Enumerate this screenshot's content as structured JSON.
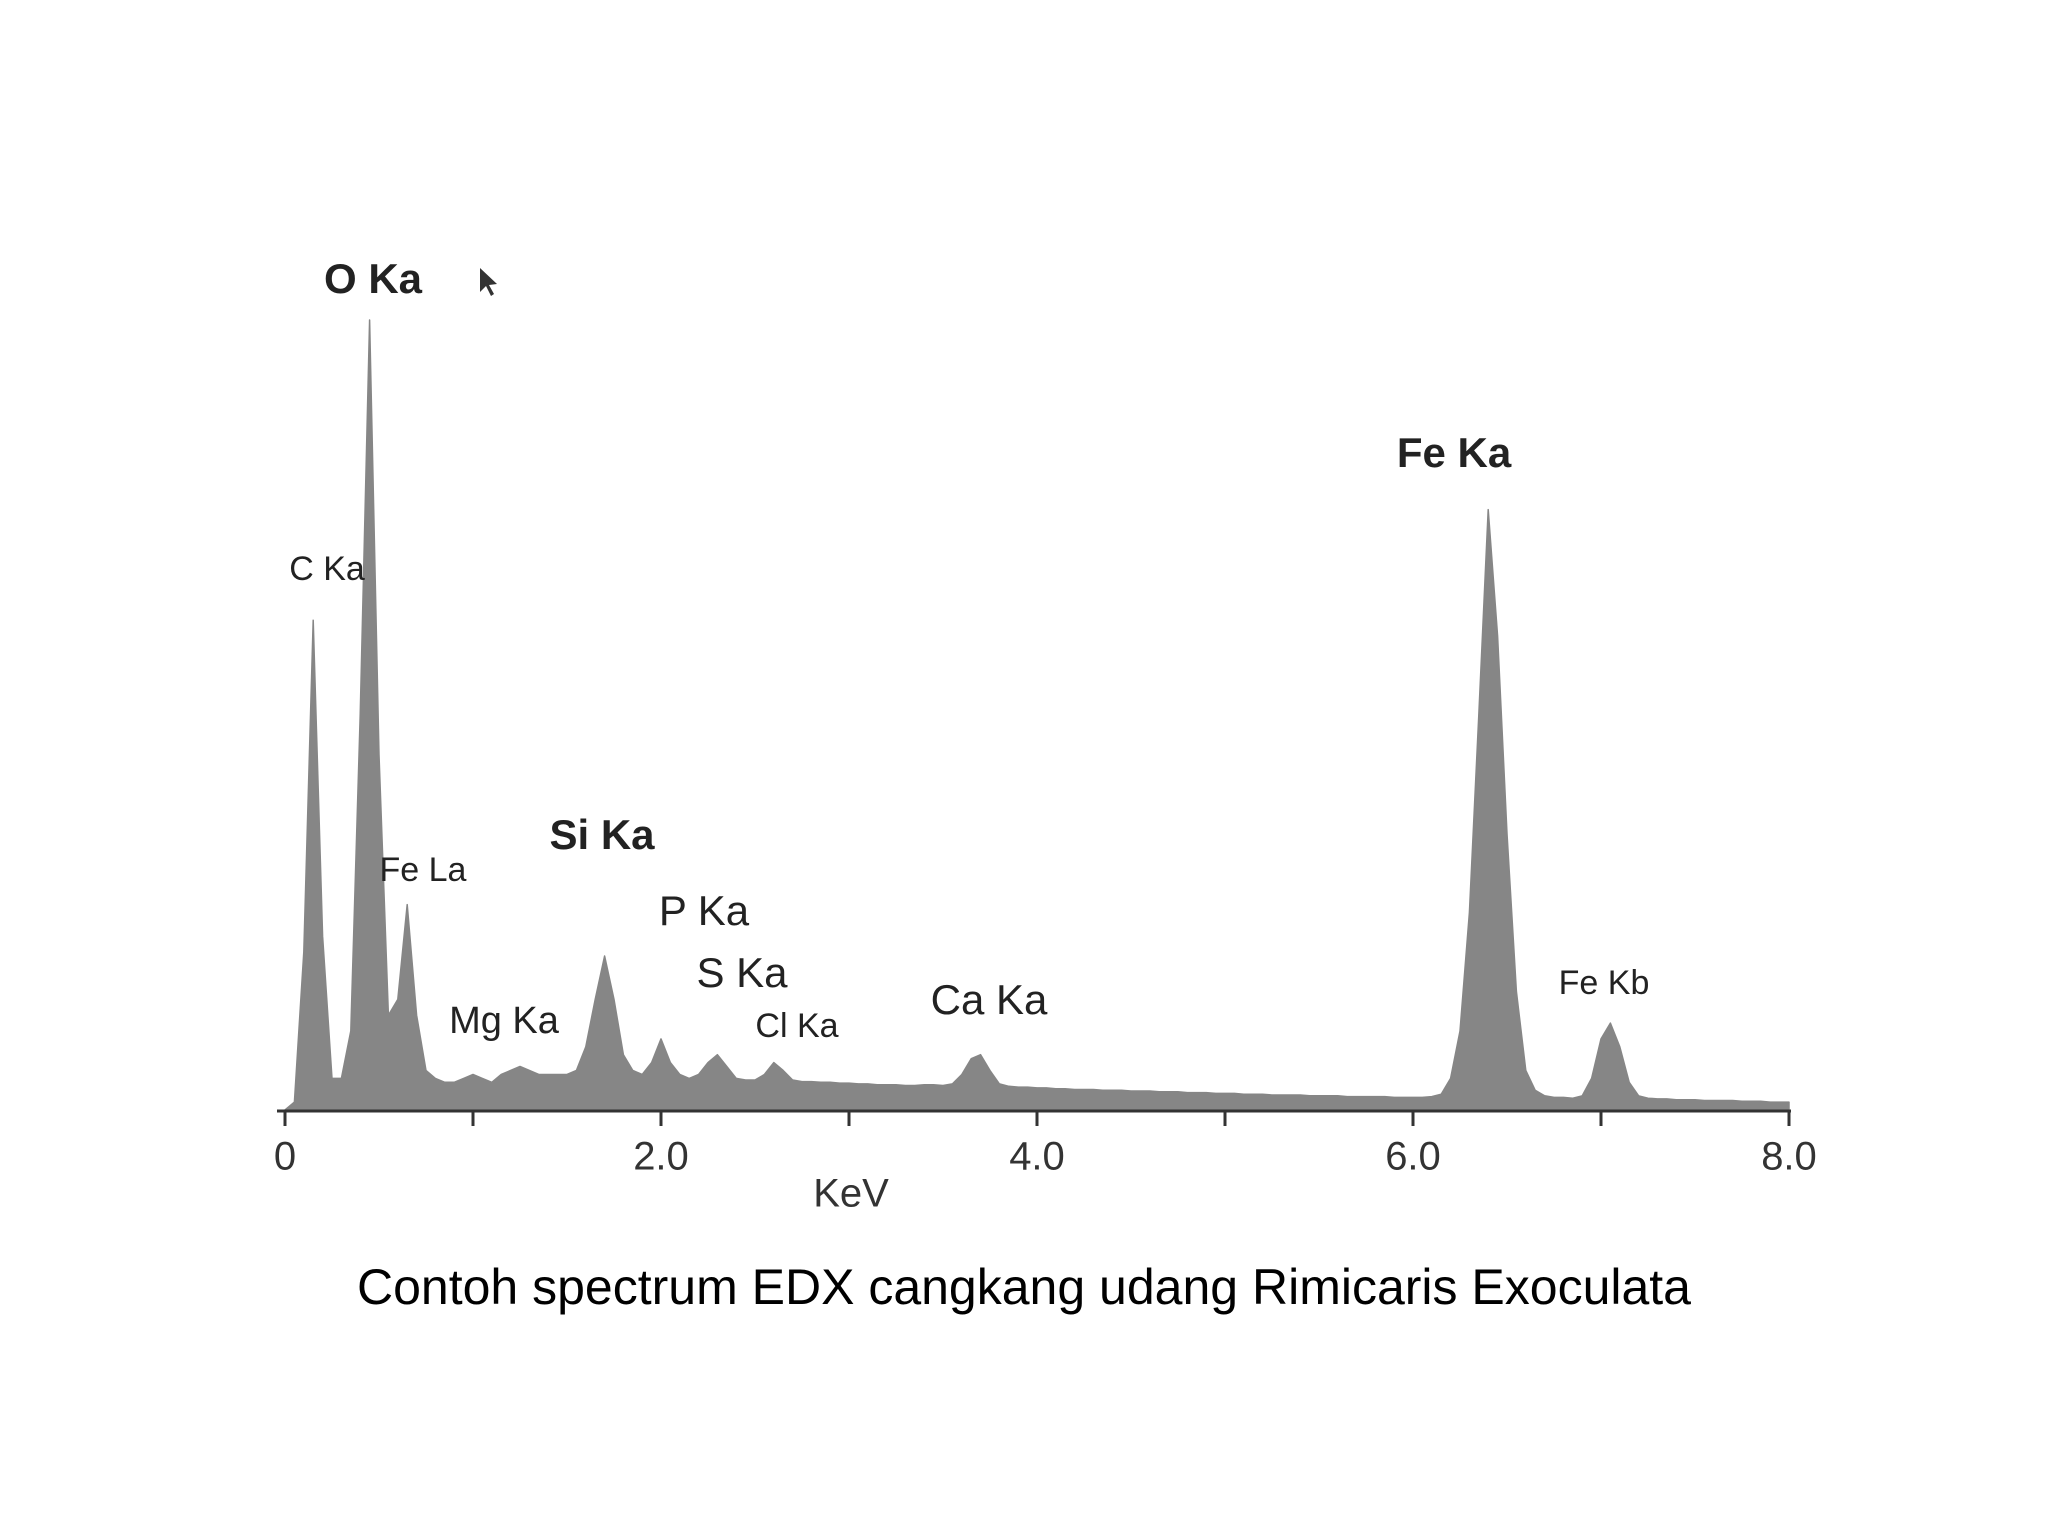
{
  "chart_data": {
    "type": "area",
    "caption": "Contoh spectrum EDX cangkang udang Rimicaris Exoculata",
    "xlabel": "KeV",
    "color": "#868686",
    "xlim": [
      0,
      8
    ],
    "ylim": [
      0,
      100
    ],
    "xticks": [
      0,
      {
        "value": 2,
        "label": "2.0"
      },
      {
        "value": 4,
        "label": "4.0"
      },
      {
        "value": 6,
        "label": "6.0"
      },
      {
        "value": 8,
        "label": "8.0"
      }
    ],
    "xminorticks": [
      1,
      3,
      5,
      7
    ],
    "annotations": [
      "O Ka",
      "Fe Ka",
      "C Ka",
      "Fe La",
      "Si Ka",
      "P Ka",
      "S Ka",
      "Cl Ka",
      "Mg Ka",
      "Ca Ka",
      "Fe Kb"
    ],
    "x": [
      0,
      0.05,
      0.1,
      0.15,
      0.2,
      0.25,
      0.3,
      0.35,
      0.4,
      0.45,
      0.5,
      0.55,
      0.6,
      0.65,
      0.7,
      0.75,
      0.8,
      0.85,
      0.9,
      0.95,
      1,
      1.05,
      1.1,
      1.15,
      1.2,
      1.25,
      1.3,
      1.35,
      1.4,
      1.45,
      1.5,
      1.55,
      1.6,
      1.65,
      1.7,
      1.75,
      1.8,
      1.85,
      1.9,
      1.95,
      2,
      2.05,
      2.1,
      2.15,
      2.2,
      2.25,
      2.3,
      2.35,
      2.4,
      2.45,
      2.5,
      2.55,
      2.6,
      2.65,
      2.7,
      2.75,
      2.8,
      2.85,
      2.9,
      2.95,
      3,
      3.05,
      3.1,
      3.15,
      3.2,
      3.25,
      3.3,
      3.35,
      3.4,
      3.45,
      3.5,
      3.55,
      3.6,
      3.65,
      3.7,
      3.75,
      3.8,
      3.85,
      3.9,
      3.95,
      4,
      4.05,
      4.1,
      4.15,
      4.2,
      4.25,
      4.3,
      4.35,
      4.4,
      4.45,
      4.5,
      4.55,
      4.6,
      4.65,
      4.7,
      4.75,
      4.8,
      4.85,
      4.9,
      4.95,
      5,
      5.05,
      5.1,
      5.15,
      5.2,
      5.25,
      5.3,
      5.35,
      5.4,
      5.45,
      5.5,
      5.55,
      5.6,
      5.65,
      5.7,
      5.75,
      5.8,
      5.85,
      5.9,
      5.95,
      6,
      6.05,
      6.1,
      6.15,
      6.2,
      6.25,
      6.3,
      6.35,
      6.4,
      6.45,
      6.5,
      6.55,
      6.6,
      6.65,
      6.7,
      6.75,
      6.8,
      6.85,
      6.9,
      6.95,
      7,
      7.05,
      7.1,
      7.15,
      7.2,
      7.25,
      7.3,
      7.35,
      7.4,
      7.45,
      7.5,
      7.55,
      7.6,
      7.65,
      7.7,
      7.75,
      7.8,
      7.85,
      7.9,
      7.95,
      8
    ],
    "values": [
      0,
      1,
      20,
      62,
      22,
      4,
      4,
      10,
      50,
      100,
      45,
      12,
      14,
      26,
      12,
      5,
      4,
      3.5,
      3.5,
      4,
      4.5,
      4,
      3.5,
      4.5,
      5,
      5.5,
      5,
      4.5,
      4.5,
      4.5,
      4.5,
      5,
      8,
      14,
      19.5,
      14,
      7,
      5,
      4.5,
      6,
      9,
      6,
      4.5,
      4,
      4.5,
      6,
      7,
      5.5,
      4,
      3.8,
      3.8,
      4.5,
      6,
      5,
      3.8,
      3.6,
      3.6,
      3.5,
      3.5,
      3.4,
      3.4,
      3.3,
      3.3,
      3.2,
      3.2,
      3.2,
      3.1,
      3.1,
      3.2,
      3.2,
      3.1,
      3.3,
      4.5,
      6.5,
      7,
      5,
      3.3,
      3,
      2.9,
      2.9,
      2.8,
      2.8,
      2.7,
      2.7,
      2.6,
      2.6,
      2.6,
      2.5,
      2.5,
      2.5,
      2.4,
      2.4,
      2.4,
      2.3,
      2.3,
      2.3,
      2.2,
      2.2,
      2.2,
      2.1,
      2.1,
      2.1,
      2,
      2,
      2,
      1.9,
      1.9,
      1.9,
      1.9,
      1.8,
      1.8,
      1.8,
      1.8,
      1.7,
      1.7,
      1.7,
      1.7,
      1.7,
      1.6,
      1.6,
      1.6,
      1.6,
      1.7,
      2,
      4,
      10,
      25,
      50,
      76,
      60,
      35,
      15,
      5,
      2.5,
      1.8,
      1.6,
      1.6,
      1.5,
      1.8,
      4,
      9,
      11,
      8,
      3.5,
      1.8,
      1.5,
      1.4,
      1.4,
      1.3,
      1.3,
      1.3,
      1.2,
      1.2,
      1.2,
      1.2,
      1.1,
      1.1,
      1.1,
      1,
      1,
      1
    ]
  }
}
